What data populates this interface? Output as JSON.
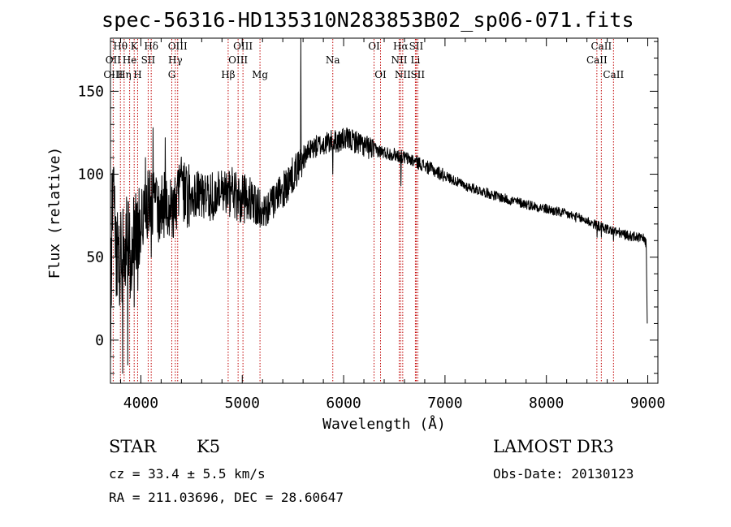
{
  "header": {
    "title": "spec-56316-HD135310N283853B02_sp06-071.fits"
  },
  "info": {
    "class_label": "STAR",
    "subclass": "K5",
    "survey": "LAMOST DR3",
    "redshift": "cz = 33.4 ± 5.5 km/s",
    "obs_date": "Obs-Date: 20130123",
    "coords": "RA = 211.03696, DEC =  28.60647"
  },
  "chart_data": {
    "type": "line",
    "title": "spec-56316-HD135310N283853B02_sp06-071.fits",
    "xlabel": "Wavelength (Å)",
    "ylabel": "Flux (relative)",
    "xlim": [
      3700,
      9100
    ],
    "ylim": [
      -26,
      182
    ],
    "xticks": [
      4000,
      5000,
      6000,
      7000,
      8000,
      9000
    ],
    "yticks": [
      0,
      50,
      100,
      150
    ],
    "grid": false,
    "line_color": "#000000",
    "marker_color": "#c00000",
    "anchors": [
      [
        3700,
        8
      ],
      [
        3720,
        95
      ],
      [
        3750,
        55
      ],
      [
        3800,
        48
      ],
      [
        3850,
        62
      ],
      [
        3900,
        50
      ],
      [
        3950,
        68
      ],
      [
        4000,
        72
      ],
      [
        4050,
        80
      ],
      [
        4100,
        85
      ],
      [
        4150,
        78
      ],
      [
        4200,
        80
      ],
      [
        4250,
        82
      ],
      [
        4300,
        78
      ],
      [
        4350,
        85
      ],
      [
        4400,
        92
      ],
      [
        4450,
        88
      ],
      [
        4500,
        86
      ],
      [
        4550,
        90
      ],
      [
        4600,
        87
      ],
      [
        4650,
        85
      ],
      [
        4700,
        87
      ],
      [
        4750,
        88
      ],
      [
        4800,
        90
      ],
      [
        4850,
        88
      ],
      [
        4900,
        90
      ],
      [
        4950,
        87
      ],
      [
        5000,
        85
      ],
      [
        5050,
        86
      ],
      [
        5100,
        83
      ],
      [
        5150,
        78
      ],
      [
        5200,
        80
      ],
      [
        5250,
        80
      ],
      [
        5300,
        82
      ],
      [
        5350,
        86
      ],
      [
        5400,
        90
      ],
      [
        5450,
        94
      ],
      [
        5500,
        100
      ],
      [
        5550,
        104
      ],
      [
        5600,
        110
      ],
      [
        5650,
        113
      ],
      [
        5700,
        116
      ],
      [
        5750,
        117
      ],
      [
        5800,
        118
      ],
      [
        5850,
        119
      ],
      [
        5900,
        120
      ],
      [
        5950,
        120
      ],
      [
        6000,
        121
      ],
      [
        6050,
        121
      ],
      [
        6100,
        120
      ],
      [
        6150,
        119
      ],
      [
        6200,
        117
      ],
      [
        6300,
        115
      ],
      [
        6400,
        113
      ],
      [
        6500,
        112
      ],
      [
        6600,
        110
      ],
      [
        6700,
        108
      ],
      [
        6800,
        105
      ],
      [
        6900,
        102
      ],
      [
        7000,
        99
      ],
      [
        7200,
        93
      ],
      [
        7400,
        89
      ],
      [
        7600,
        85
      ],
      [
        7800,
        82
      ],
      [
        8000,
        79
      ],
      [
        8200,
        76
      ],
      [
        8400,
        72
      ],
      [
        8500,
        69
      ],
      [
        8600,
        67
      ],
      [
        8700,
        65
      ],
      [
        8800,
        63
      ],
      [
        8900,
        62
      ],
      [
        8960,
        61
      ],
      [
        8985,
        58
      ],
      [
        8995,
        10
      ]
    ],
    "spikes": [
      [
        5578,
        182
      ],
      [
        5893,
        100
      ],
      [
        6563,
        93
      ],
      [
        3934,
        20
      ],
      [
        3968,
        30
      ],
      [
        4102,
        50
      ],
      [
        4340,
        72
      ],
      [
        4861,
        82
      ],
      [
        5175,
        68
      ],
      [
        3820,
        -20
      ],
      [
        3870,
        -15
      ],
      [
        3905,
        30
      ],
      [
        4120,
        128
      ],
      [
        4240,
        122
      ],
      [
        8498,
        62
      ],
      [
        8542,
        62
      ],
      [
        8662,
        60
      ],
      [
        4045,
        110
      ],
      [
        4420,
        105
      ],
      [
        5550,
        100
      ]
    ],
    "lines": [
      {
        "name": "Hθ",
        "wave": 3798,
        "row": 0
      },
      {
        "name": "OII",
        "wave": 3727,
        "row": 1
      },
      {
        "name": "OIII",
        "wave": 3727,
        "row": 2
      },
      {
        "name": "K",
        "wave": 3934,
        "row": 0
      },
      {
        "name": "He",
        "wave": 3889,
        "row": 1
      },
      {
        "name": "Hη",
        "wave": 3835,
        "row": 2
      },
      {
        "name": "Hδ",
        "wave": 4102,
        "row": 0
      },
      {
        "name": "SII",
        "wave": 4072,
        "row": 1
      },
      {
        "name": "H",
        "wave": 3968,
        "row": 2
      },
      {
        "name": "OIII",
        "wave": 4363,
        "row": 0
      },
      {
        "name": "Hγ",
        "wave": 4340,
        "row": 1
      },
      {
        "name": "G",
        "wave": 4305,
        "row": 2
      },
      {
        "name": "OIII",
        "wave": 5007,
        "row": 0
      },
      {
        "name": "OIII",
        "wave": 4959,
        "row": 1
      },
      {
        "name": "Hβ",
        "wave": 4861,
        "row": 2
      },
      {
        "name": "Mg",
        "wave": 5175,
        "row": 2
      },
      {
        "name": "Na",
        "wave": 5893,
        "row": 1
      },
      {
        "name": "OI",
        "wave": 6300,
        "row": 0
      },
      {
        "name": "OI",
        "wave": 6364,
        "row": 2
      },
      {
        "name": "Hα",
        "wave": 6563,
        "row": 0
      },
      {
        "name": "NII",
        "wave": 6548,
        "row": 1
      },
      {
        "name": "NII",
        "wave": 6583,
        "row": 2
      },
      {
        "name": "SII",
        "wave": 6716,
        "row": 0
      },
      {
        "name": "Li",
        "wave": 6708,
        "row": 1
      },
      {
        "name": "SII",
        "wave": 6731,
        "row": 2
      },
      {
        "name": "CaII",
        "wave": 8542,
        "row": 0
      },
      {
        "name": "CaII",
        "wave": 8498,
        "row": 1
      },
      {
        "name": "CaII",
        "wave": 8662,
        "row": 2
      }
    ]
  }
}
